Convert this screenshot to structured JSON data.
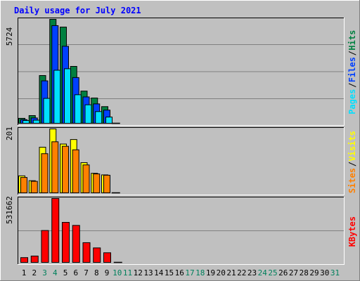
{
  "title": "Daily usage for July 2021",
  "colors": {
    "background": "#c0c0c0",
    "title": "#0000ff",
    "hits": "#008040",
    "files": "#0040ff",
    "pages": "#00e0ff",
    "visits": "#ffff00",
    "sites": "#ff8000",
    "kbytes": "#ff0000",
    "weekend_day": "#00805c",
    "weekday": "#000000"
  },
  "chart_data": [
    {
      "type": "bar",
      "panel": "hits-files-pages",
      "ymax_label": "5724",
      "ylim": [
        0,
        5724
      ],
      "legend": [
        {
          "label": "Pages",
          "color": "#00e0ff"
        },
        {
          "label": "Files",
          "color": "#0040ff"
        },
        {
          "label": "Hits",
          "color": "#008040"
        }
      ],
      "series": [
        {
          "name": "Hits",
          "values": [
            310,
            460,
            2650,
            5724,
            5300,
            3150,
            1800,
            1420,
            950,
            0
          ]
        },
        {
          "name": "Files",
          "values": [
            240,
            330,
            2360,
            5380,
            4250,
            2540,
            1480,
            1100,
            760,
            0
          ]
        },
        {
          "name": "Pages",
          "values": [
            190,
            210,
            1400,
            2940,
            3020,
            1600,
            1050,
            680,
            380,
            0
          ]
        }
      ]
    },
    {
      "type": "bar",
      "panel": "visits-sites",
      "ymax_label": "201",
      "ylim": [
        0,
        201
      ],
      "legend": [
        {
          "label": "Sites",
          "color": "#ff8000"
        },
        {
          "label": "Visits",
          "color": "#ffff00"
        }
      ],
      "series": [
        {
          "name": "Visits",
          "values": [
            55,
            40,
            144,
            201,
            154,
            168,
            96,
            63,
            58,
            0
          ]
        },
        {
          "name": "Sites",
          "values": [
            50,
            38,
            124,
            161,
            147,
            136,
            89,
            61,
            57,
            0
          ]
        }
      ]
    },
    {
      "type": "bar",
      "panel": "kbytes",
      "ymax_label": "531662",
      "ylim": [
        0,
        531662
      ],
      "legend": [
        {
          "label": "KBytes",
          "color": "#ff0000"
        }
      ],
      "series": [
        {
          "name": "KBytes",
          "values": [
            45000,
            58000,
            268000,
            531662,
            335000,
            310000,
            168000,
            125000,
            85000,
            0
          ]
        }
      ]
    }
  ],
  "x_axis": {
    "days": [
      "1",
      "2",
      "3",
      "4",
      "5",
      "6",
      "7",
      "8",
      "9",
      "10",
      "11",
      "12",
      "13",
      "14",
      "15",
      "16",
      "17",
      "18",
      "19",
      "20",
      "21",
      "22",
      "23",
      "24",
      "25",
      "26",
      "27",
      "28",
      "29",
      "30",
      "31"
    ],
    "weekend": [
      "3",
      "4",
      "10",
      "11",
      "17",
      "18",
      "24",
      "25",
      "31"
    ]
  }
}
